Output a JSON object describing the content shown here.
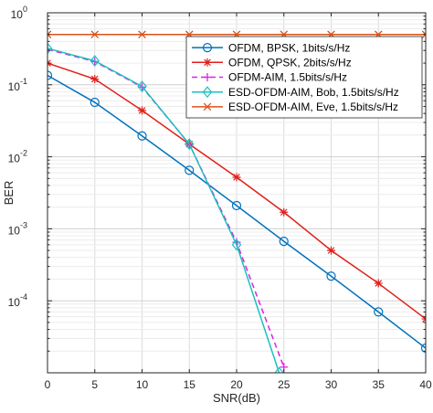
{
  "chart_data": {
    "type": "line",
    "xlabel": "SNR(dB)",
    "ylabel": "BER",
    "xlim": [
      0,
      40
    ],
    "ylim": [
      1e-05,
      1
    ],
    "yscale": "log",
    "grid": true,
    "legend_position": "top-right",
    "x_ticks": [
      {
        "value": 0,
        "label": "0"
      },
      {
        "value": 5,
        "label": "5"
      },
      {
        "value": 10,
        "label": "10"
      },
      {
        "value": 15,
        "label": "15"
      },
      {
        "value": 20,
        "label": "20"
      },
      {
        "value": 25,
        "label": "25"
      },
      {
        "value": 30,
        "label": "30"
      },
      {
        "value": 35,
        "label": "35"
      },
      {
        "value": 40,
        "label": "40"
      }
    ],
    "y_ticks": [
      {
        "value": 1,
        "base": "10",
        "exp": "0"
      },
      {
        "value": 0.1,
        "base": "10",
        "exp": "-1"
      },
      {
        "value": 0.01,
        "base": "10",
        "exp": "-2"
      },
      {
        "value": 0.001,
        "base": "10",
        "exp": "-3"
      },
      {
        "value": 0.0001,
        "base": "10",
        "exp": "-4"
      }
    ],
    "series": [
      {
        "name": "OFDM, BPSK, 1bits/s/Hz",
        "color": "#0072BD",
        "marker": "circle",
        "dash": "solid",
        "x": [
          0,
          5,
          10,
          15,
          20,
          25,
          30,
          35,
          40
        ],
        "y": [
          0.135,
          0.057,
          0.0195,
          0.0065,
          0.0021,
          0.00067,
          0.00022,
          7e-05,
          2.2e-05
        ]
      },
      {
        "name": "OFDM, QPSK, 2bits/s/Hz",
        "color": "#E0201B",
        "marker": "star",
        "dash": "solid",
        "x": [
          0,
          5,
          10,
          15,
          20,
          25,
          30,
          35,
          40
        ],
        "y": [
          0.2,
          0.12,
          0.044,
          0.015,
          0.0052,
          0.0017,
          0.0005,
          0.000175,
          5.6e-05
        ]
      },
      {
        "name": "OFDM-AIM, 1.5bits/s/Hz",
        "color": "#E020E0",
        "marker": "plus",
        "dash": "dashed",
        "x": [
          0,
          5,
          10,
          15,
          20,
          25
        ],
        "y": [
          0.31,
          0.21,
          0.093,
          0.015,
          0.00065,
          1.2e-05
        ]
      },
      {
        "name": "ESD-OFDM-AIM, Bob, 1.5bits/s/Hz",
        "color": "#1CC0C0",
        "marker": "diamond",
        "dash": "solid",
        "x": [
          0,
          5,
          10,
          15,
          20,
          24.5
        ],
        "y": [
          0.32,
          0.215,
          0.095,
          0.015,
          0.0006,
          1e-05
        ]
      },
      {
        "name": "ESD-OFDM-AIM, Eve, 1.5bits/s/Hz",
        "color": "#D95319",
        "marker": "x",
        "dash": "solid",
        "x": [
          0,
          5,
          10,
          15,
          20,
          25,
          30,
          35,
          40
        ],
        "y": [
          0.5,
          0.5,
          0.5,
          0.5,
          0.5,
          0.5,
          0.5,
          0.5,
          0.5
        ]
      }
    ]
  }
}
